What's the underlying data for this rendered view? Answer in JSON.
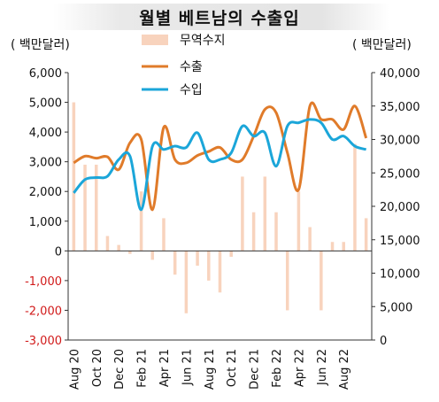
{
  "title": "월별 베트남의 수출입",
  "left_unit": "( 백만달러)",
  "right_unit": "( 백만달러)",
  "chart_data": {
    "type": "bar+line",
    "title": "월별 베트남의 수출입",
    "xlabel": "",
    "ylabel_left": "( 백만달러)",
    "ylabel_right": "( 백만달러)",
    "ylim_left": [
      -3000,
      6000
    ],
    "ylim_right": [
      0,
      40000
    ],
    "yticks_left": [
      "6,000",
      "5,000",
      "4,000",
      "3,000",
      "2,000",
      "1,000",
      "0",
      "-1,000",
      "-2,000",
      "-3,000"
    ],
    "yticks_right": [
      "40,000",
      "35,000",
      "30,000",
      "25,000",
      "20,000",
      "15,000",
      "10,000",
      "5,000",
      "0"
    ],
    "xtick_labels": [
      "Aug 20",
      "Oct 20",
      "Dec 20",
      "Feb 21",
      "Apr 21",
      "Jun 21",
      "Aug 21",
      "Oct 21",
      "Dec 21",
      "Feb 22",
      "Apr 22",
      "Jun 22",
      "Aug 22"
    ],
    "legend_position": "top-center",
    "series": [
      {
        "name": "무역수지",
        "type": "bar",
        "axis": "left",
        "color": "#f8d3bd",
        "values": [
          5000,
          2900,
          2900,
          500,
          200,
          -100,
          2000,
          -300,
          1100,
          -800,
          -2100,
          -500,
          -1000,
          -1400,
          -200,
          2500,
          1300,
          2500,
          1300,
          -2000,
          2000,
          800,
          -2000,
          300,
          300,
          3600,
          1100
        ]
      },
      {
        "name": "수출",
        "type": "line",
        "axis": "right",
        "color": "#e07b2a",
        "values": [
          26500,
          27500,
          27200,
          27400,
          25500,
          29500,
          30000,
          19500,
          31800,
          27000,
          26500,
          27600,
          28200,
          28800,
          27000,
          27000,
          30500,
          34500,
          34000,
          28000,
          22500,
          35000,
          33000,
          33000,
          31500,
          35000,
          30200
        ]
      },
      {
        "name": "수입",
        "type": "line",
        "axis": "right",
        "color": "#1ba6d9",
        "values": [
          22000,
          24000,
          24300,
          24500,
          27000,
          27500,
          19500,
          29000,
          28500,
          29000,
          28800,
          31000,
          27000,
          27000,
          28000,
          32000,
          30500,
          31000,
          26000,
          32000,
          32500,
          33000,
          32500,
          30000,
          30500,
          29000,
          28500
        ]
      }
    ]
  }
}
